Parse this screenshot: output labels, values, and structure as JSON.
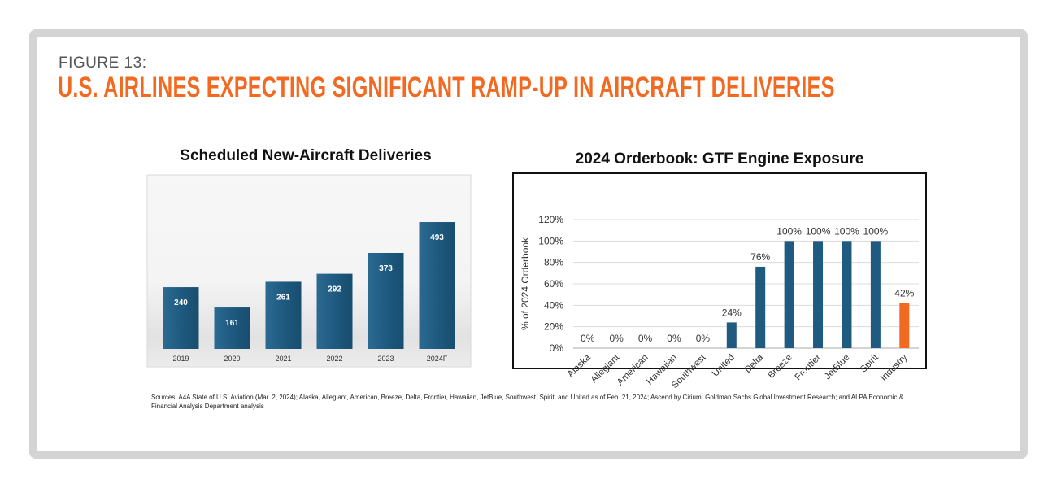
{
  "figure": {
    "label": "FIGURE 13:",
    "title": "U.S. AIRLINES EXPECTING SIGNIFICANT RAMP-UP IN AIRCRAFT DELIVERIES",
    "sources": "Sources: A4A State of U.S. Aviation (Mar. 2, 2024); Alaska, Allegiant, American, Breeze, Delta, Frontier, Hawaiian, JetBlue, Southwest, Spirit, and United as of Feb. 21, 2024; Ascend by Cirium; Goldman Sachs Global Investment Research; and ALPA Economic & Financial Analysis Department analysis"
  },
  "colors": {
    "accent": "#f26a22",
    "bar_blue": "#1f5a80",
    "frame": "#d4d4d4"
  },
  "chart_data": [
    {
      "type": "bar",
      "title": "Scheduled New-Aircraft Deliveries",
      "categories": [
        "2019",
        "2020",
        "2021",
        "2022",
        "2023",
        "2024F"
      ],
      "values": [
        240,
        161,
        261,
        292,
        373,
        493
      ],
      "data_labels": [
        "240",
        "161",
        "261",
        "292",
        "373",
        "493"
      ],
      "ylim": [
        0,
        550
      ],
      "grid": false,
      "legend": "none"
    },
    {
      "type": "bar",
      "title": "2024 Orderbook: GTF Engine Exposure",
      "ylabel": "% of 2024 Orderbook",
      "categories": [
        "Alaska",
        "Allegiant",
        "American",
        "Hawaiian",
        "Southwest",
        "United",
        "Delta",
        "Breeze",
        "Frontier",
        "JetBlue",
        "Spirit",
        "Industry"
      ],
      "values": [
        0,
        0,
        0,
        0,
        0,
        24,
        76,
        100,
        100,
        100,
        100,
        42
      ],
      "data_labels": [
        "0%",
        "0%",
        "0%",
        "0%",
        "0%",
        "24%",
        "76%",
        "100%",
        "100%",
        "100%",
        "100%",
        "42%"
      ],
      "highlight": "Industry",
      "y_ticks": [
        "0%",
        "20%",
        "40%",
        "60%",
        "80%",
        "100%",
        "120%"
      ],
      "ylim": [
        0,
        120
      ],
      "grid": true,
      "legend": "none"
    }
  ]
}
